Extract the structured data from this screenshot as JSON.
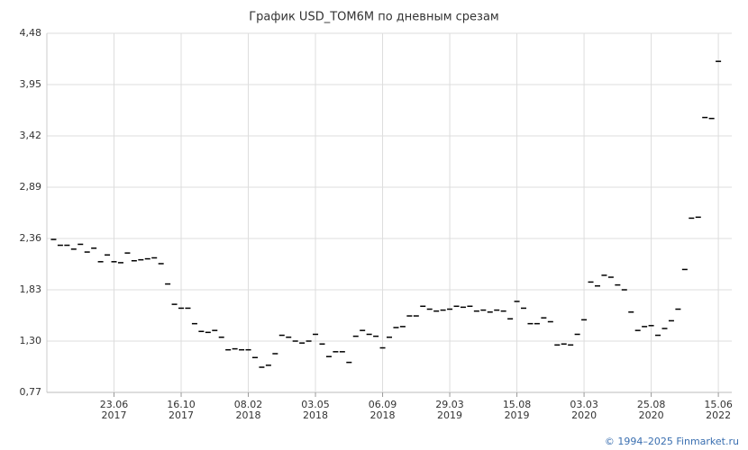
{
  "chart_data": {
    "type": "dash",
    "title": "График USD_TOM6M по дневным срезам",
    "footer": "© 1994–2025 Finmarket.ru",
    "color": "#000000",
    "grid": true,
    "values": [
      2.35,
      2.29,
      2.29,
      2.25,
      2.3,
      2.22,
      2.26,
      2.12,
      2.19,
      2.12,
      2.11,
      2.21,
      2.13,
      2.14,
      2.15,
      2.16,
      2.1,
      1.89,
      1.68,
      1.64,
      1.64,
      1.48,
      1.4,
      1.39,
      1.41,
      1.34,
      1.21,
      1.22,
      1.21,
      1.21,
      1.13,
      1.03,
      1.05,
      1.17,
      1.36,
      1.34,
      1.3,
      1.28,
      1.3,
      1.37,
      1.27,
      1.14,
      1.19,
      1.19,
      1.08,
      1.35,
      1.41,
      1.37,
      1.35,
      1.23,
      1.34,
      1.44,
      1.45,
      1.56,
      1.56,
      1.66,
      1.63,
      1.61,
      1.62,
      1.63,
      1.66,
      1.65,
      1.66,
      1.61,
      1.62,
      1.6,
      1.62,
      1.61,
      1.53,
      1.71,
      1.64,
      1.48,
      1.48,
      1.54,
      1.5,
      1.26,
      1.27,
      1.26,
      1.37,
      1.52,
      1.91,
      1.87,
      1.98,
      1.96,
      1.88,
      1.83,
      1.6,
      1.41,
      1.45,
      1.46,
      1.36,
      1.43,
      1.51,
      1.63,
      2.04,
      2.57,
      2.58,
      3.61,
      3.6,
      4.19
    ],
    "xlim": [
      -1,
      101
    ],
    "xticks": [
      {
        "value": 9,
        "label": "23.06"
      },
      {
        "value": 19,
        "label": "16.10"
      },
      {
        "value": 29,
        "label": "08.02"
      },
      {
        "value": 39,
        "label": "03.05"
      },
      {
        "value": 49,
        "label": "06.09"
      },
      {
        "value": 59,
        "label": "29.03"
      },
      {
        "value": 69,
        "label": "15.08"
      },
      {
        "value": 79,
        "label": "03.03"
      },
      {
        "value": 89,
        "label": "25.08"
      },
      {
        "value": 99,
        "label": "15.06"
      }
    ],
    "xtick_years": [
      "2017",
      "2017",
      "2018",
      "2018",
      "2018",
      "2019",
      "2019",
      "2020",
      "2020",
      "2022"
    ],
    "ylim": [
      0.77,
      4.48
    ],
    "yticks": [
      {
        "value": 0.77,
        "label": "0,77"
      },
      {
        "value": 1.3,
        "label": "1,30"
      },
      {
        "value": 1.83,
        "label": "1,83"
      },
      {
        "value": 2.36,
        "label": "2,36"
      },
      {
        "value": 2.89,
        "label": "2,89"
      },
      {
        "value": 3.42,
        "label": "3,42"
      },
      {
        "value": 3.95,
        "label": "3,95"
      },
      {
        "value": 4.48,
        "label": "4,48"
      }
    ]
  }
}
